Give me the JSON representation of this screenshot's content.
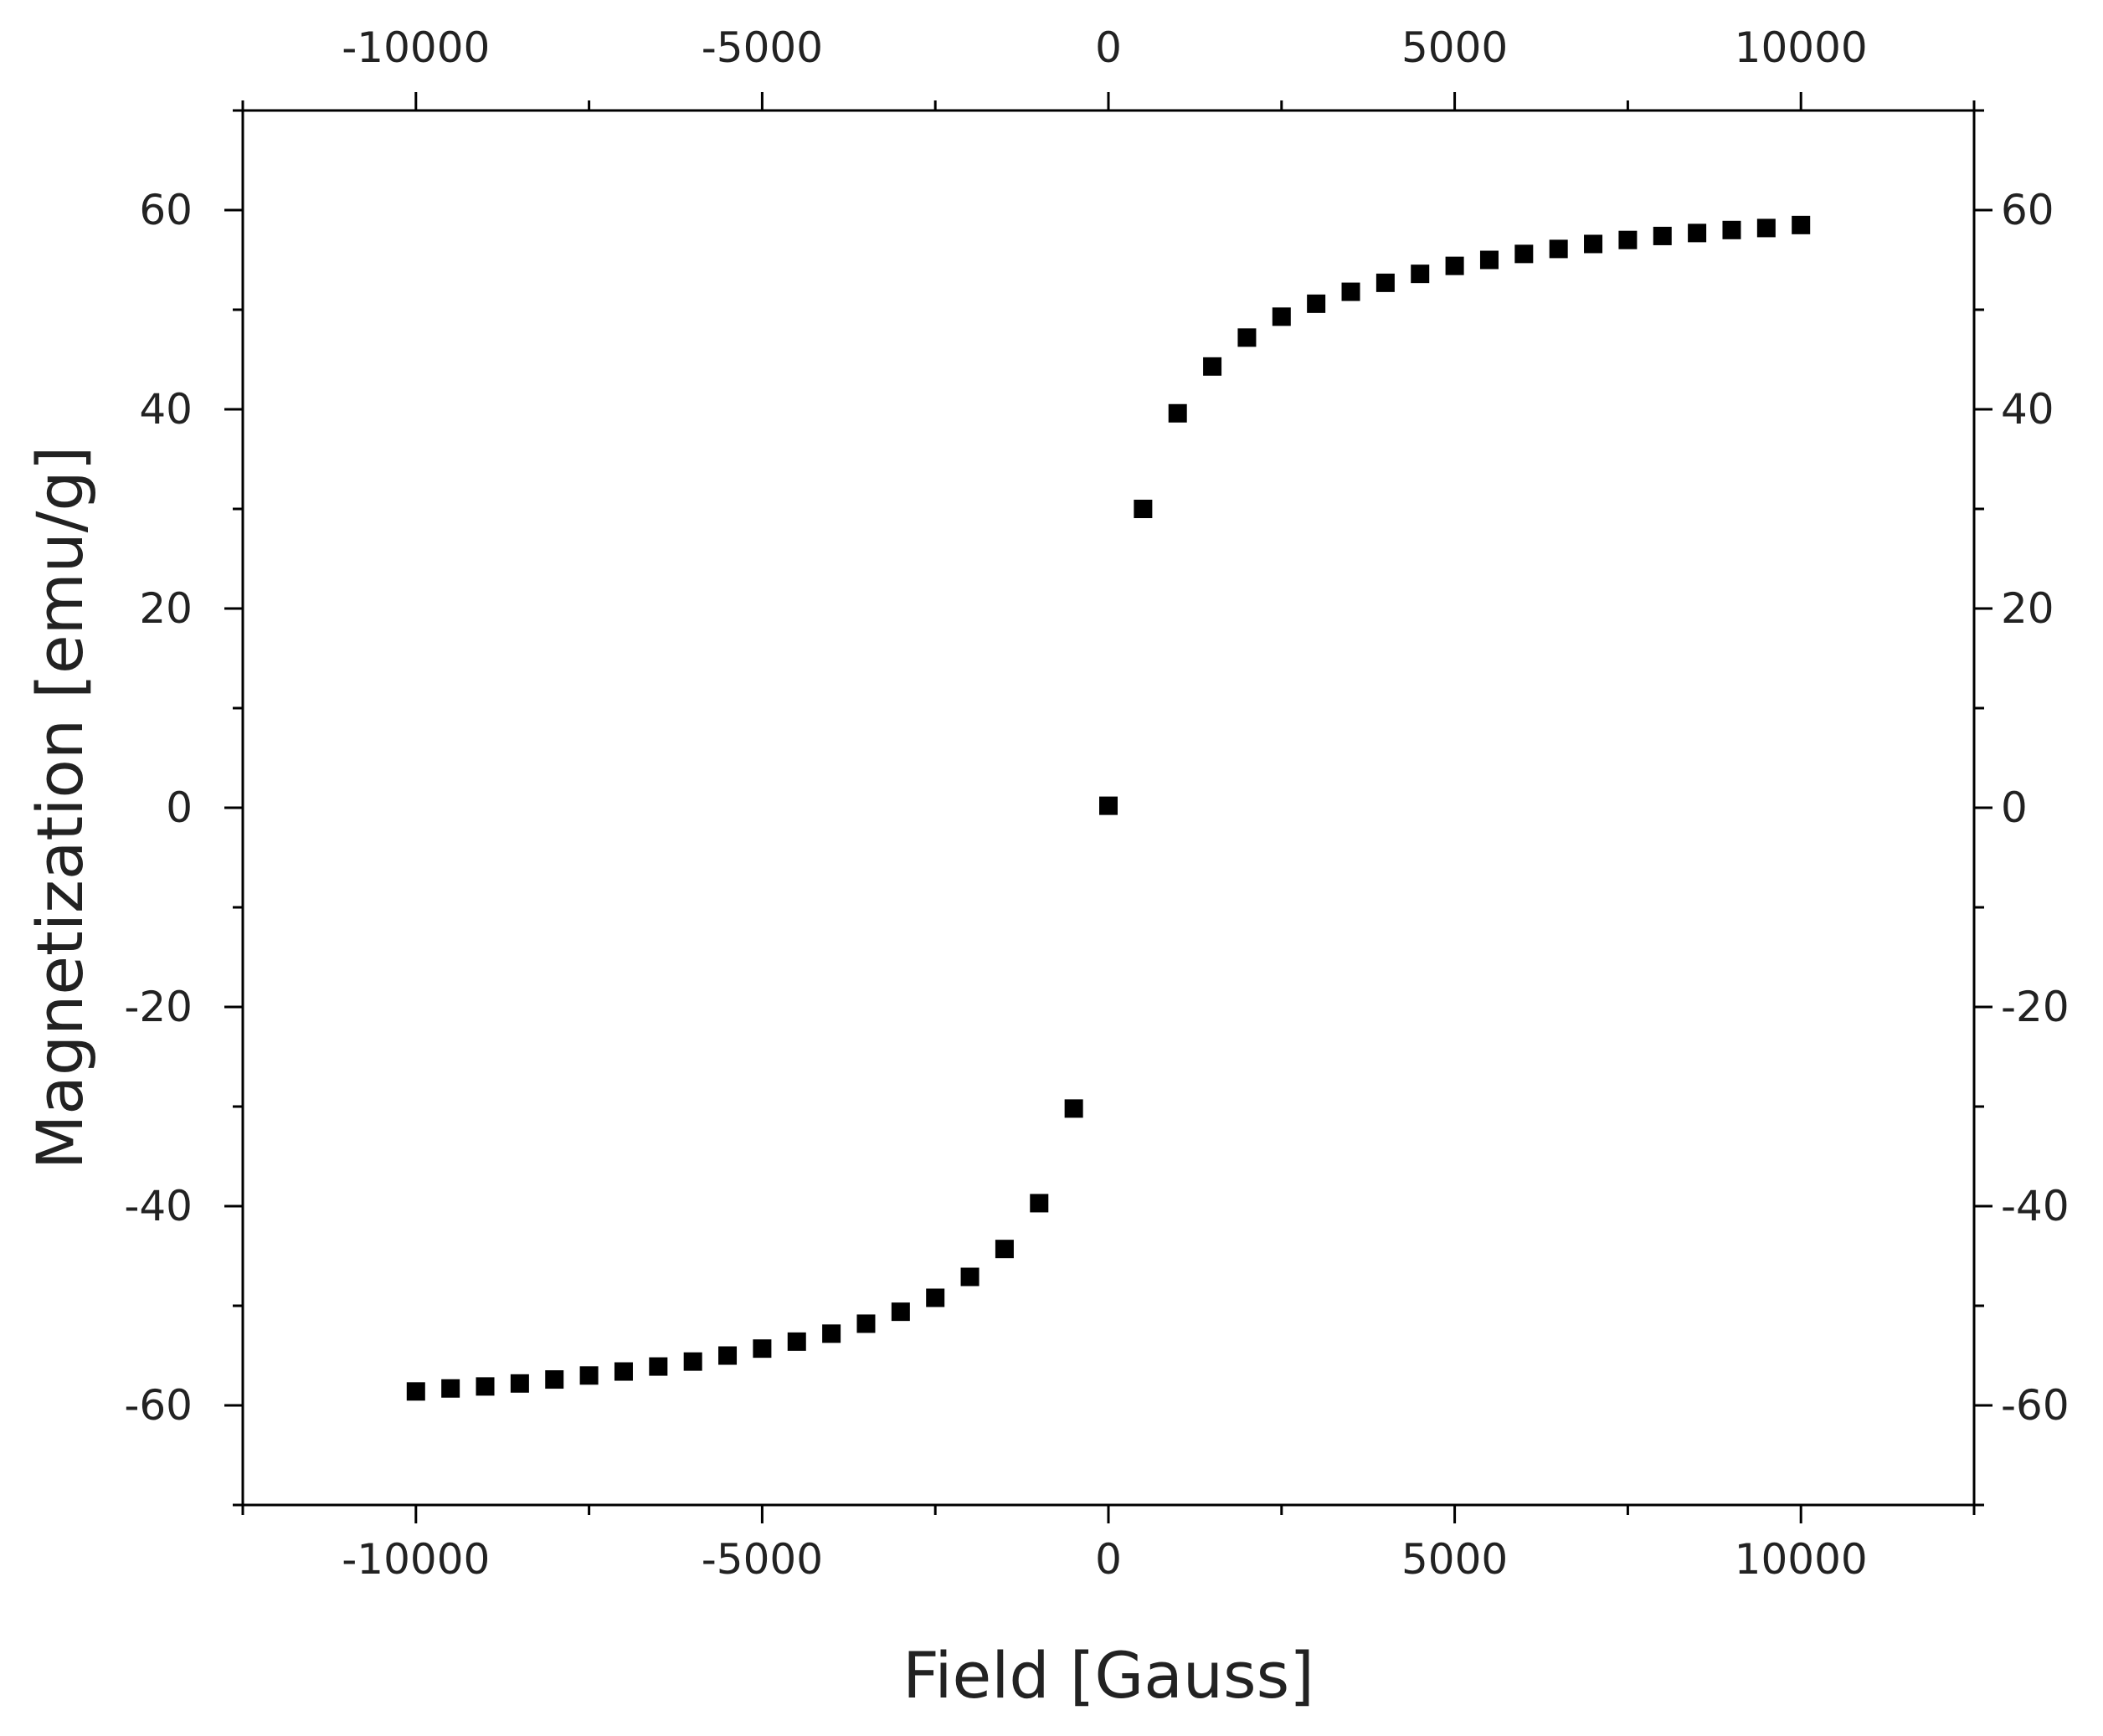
{
  "chart_data": {
    "type": "scatter",
    "title": "",
    "xlabel": "Field [Gauss]",
    "ylabel": "Magnetization [emu/g]",
    "xlim": [
      -12500,
      12500
    ],
    "ylim": [
      -70,
      70
    ],
    "x_ticks": [
      -10000,
      -5000,
      0,
      5000,
      10000
    ],
    "x_tick_labels": [
      "-10000",
      "-5000",
      "0",
      "5000",
      "10000"
    ],
    "y_ticks": [
      -60,
      -40,
      -20,
      0,
      20,
      40,
      60
    ],
    "y_tick_labels": [
      "-60",
      "-40",
      "-20",
      "0",
      "20",
      "40",
      "60"
    ],
    "top_axis_ticks": true,
    "right_axis_ticks": true,
    "grid": false,
    "legend": "none",
    "marker": "square",
    "marker_color": "#000000",
    "series": [
      {
        "x": [
          -10000,
          -9500,
          -9000,
          -8500,
          -8000,
          -7500,
          -7000,
          -6500,
          -6000,
          -5500,
          -5000,
          -4500,
          -4000,
          -3500,
          -3000,
          -2500,
          -2000,
          -1500,
          -1000,
          -500,
          0,
          500,
          1000,
          1500,
          2000,
          2500,
          3000,
          3500,
          4000,
          4500,
          5000,
          5500,
          6000,
          6500,
          7000,
          7500,
          8000,
          8500,
          9000,
          9500,
          10000
        ],
        "y": [
          -58.6,
          -58.3,
          -58.1,
          -57.8,
          -57.4,
          -57.0,
          -56.6,
          -56.1,
          -55.6,
          -55.0,
          -54.3,
          -53.6,
          -52.8,
          -51.8,
          -50.6,
          -49.2,
          -47.1,
          -44.3,
          -39.7,
          -30.2,
          0.2,
          30.0,
          39.6,
          44.3,
          47.2,
          49.3,
          50.6,
          51.8,
          52.7,
          53.6,
          54.4,
          55.0,
          55.6,
          56.1,
          56.6,
          57.0,
          57.4,
          57.7,
          58.0,
          58.2,
          58.5
        ]
      }
    ]
  }
}
